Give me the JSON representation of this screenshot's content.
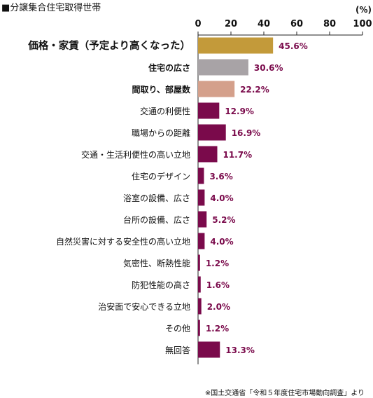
{
  "title": "■分譲集合住宅取得世帯",
  "unit": "(%)",
  "source": "※国土交通省「令和５年度住宅市場動向調査」より",
  "colors": {
    "top1": "#c39a3a",
    "top2": "#a8a3a6",
    "top3": "#d4a08b",
    "other": "#7a0a4b",
    "value_text": "#7a0a4b",
    "axis": "#222222"
  },
  "chart_data": {
    "type": "bar",
    "orientation": "horizontal",
    "xlim": [
      0,
      100
    ],
    "xticks": [
      0,
      20,
      40,
      60,
      80,
      100
    ],
    "categories": [
      "価格・家賃（予定より高くなった）",
      "住宅の広さ",
      "間取り、部屋数",
      "交通の利便性",
      "職場からの距離",
      "交通・生活利便性の高い立地",
      "住宅のデザイン",
      "浴室の設備、広さ",
      "台所の設備、広さ",
      "自然災害に対する安全性の高い立地",
      "気密性、断熱性能",
      "防犯性能の高さ",
      "治安面で安心できる立地",
      "その他",
      "無回答"
    ],
    "values": [
      45.6,
      30.6,
      22.2,
      12.9,
      16.9,
      11.7,
      3.6,
      4.0,
      5.2,
      4.0,
      1.2,
      1.6,
      2.0,
      1.2,
      13.3
    ],
    "value_labels": [
      "45.6%",
      "30.6%",
      "22.2%",
      "12.9%",
      "16.9%",
      "11.7%",
      "3.6%",
      "4.0%",
      "5.2%",
      "4.0%",
      "1.2%",
      "1.6%",
      "2.0%",
      "1.2%",
      "13.3%"
    ]
  }
}
